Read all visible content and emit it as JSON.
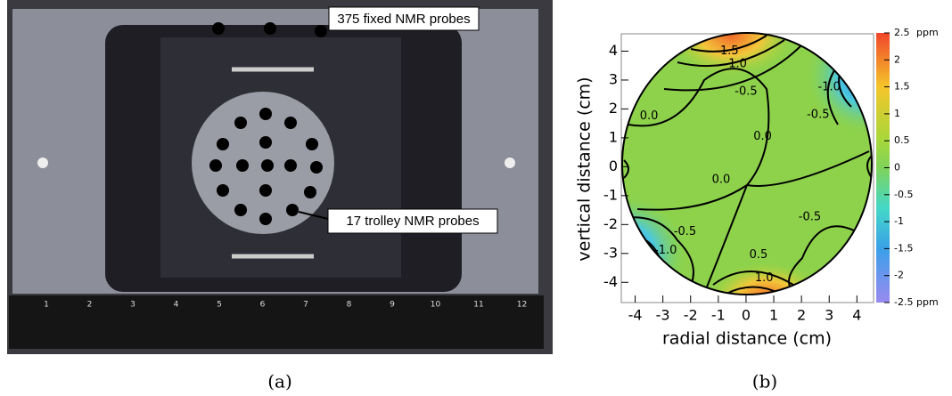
{
  "figure_a": {
    "caption": "(a)",
    "fixed_label": "375 fixed NMR probes",
    "trolley_label": "17 trolley NMR probes",
    "ruler_numbers": [
      1,
      2,
      3,
      4,
      5,
      6,
      7,
      8,
      9,
      10,
      11,
      12
    ]
  },
  "figure_b": {
    "caption": "(b)",
    "xlabel": "radial distance (cm)",
    "ylabel": "vertical distance (cm)",
    "xlim": [
      -4.5,
      4.6
    ],
    "ylim": [
      -4.7,
      4.6
    ],
    "xticks": [
      -4,
      -3,
      -2,
      -1,
      0,
      1,
      2,
      3,
      4
    ],
    "yticks": [
      -4,
      -3,
      -2,
      -1,
      0,
      1,
      2,
      3,
      4
    ],
    "colorbar": {
      "lim": [
        -2.5,
        2.5
      ],
      "ticks": [
        2.5,
        2,
        1.5,
        1,
        0.5,
        0,
        -0.5,
        -1,
        -1.5,
        -2,
        -2.5
      ],
      "unit": "ppm"
    },
    "contour_labels": [
      {
        "label": "1.5",
        "x": -0.6,
        "y": 4.0
      },
      {
        "label": "1.0",
        "x": -0.3,
        "y": 3.55
      },
      {
        "label": "-0.5",
        "x": 0.0,
        "y": 2.6
      },
      {
        "label": "-1.0",
        "x": 3.0,
        "y": 2.75
      },
      {
        "label": "-0.5",
        "x": 2.6,
        "y": 1.8
      },
      {
        "label": "0.0",
        "x": -3.5,
        "y": 1.75
      },
      {
        "label": "0.0",
        "x": 0.6,
        "y": 1.05
      },
      {
        "label": "0.0",
        "x": -0.9,
        "y": -0.45
      },
      {
        "label": "-0.5",
        "x": 2.3,
        "y": -1.75
      },
      {
        "label": "-0.5",
        "x": -2.2,
        "y": -2.25
      },
      {
        "label": "-1.0",
        "x": -2.9,
        "y": -2.9
      },
      {
        "label": "0.5",
        "x": 0.45,
        "y": -3.05
      },
      {
        "label": "1.0",
        "x": 0.65,
        "y": -3.85
      }
    ]
  }
}
